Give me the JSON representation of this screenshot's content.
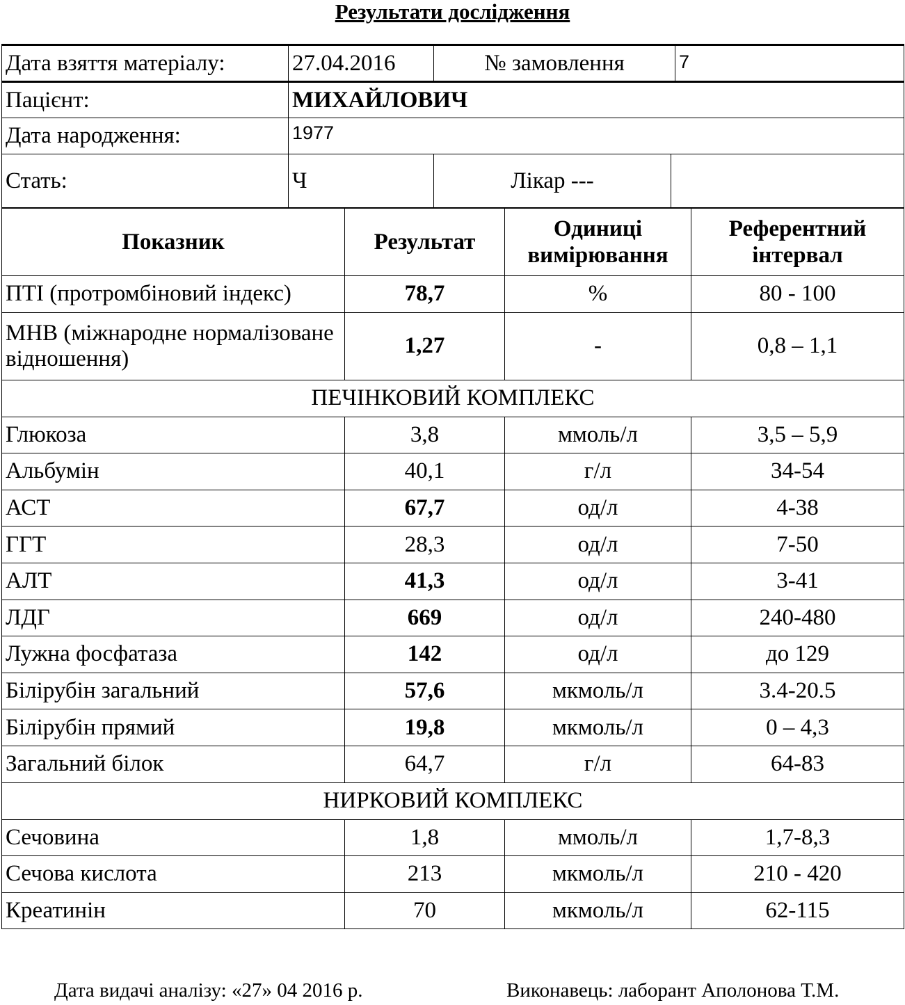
{
  "title": "Результати дослідження",
  "info": {
    "date_label": "Дата взяття матеріалу:",
    "date_value": "27.04.2016",
    "order_label": "№ замовлення",
    "order_value": "7",
    "patient_label": "Пацієнт:",
    "patient_value": "МИХАЙЛОВИЧ",
    "birth_label": "Дата народження:",
    "birth_value": "1977",
    "sex_label": "Стать:",
    "sex_value": "Ч",
    "doctor_label": "Лікар  ---",
    "doctor_value": ""
  },
  "table": {
    "headers": [
      "Показник",
      "Результат",
      "Одиниці вимірювання",
      "Референтний інтервал"
    ],
    "rows": [
      {
        "name": "ПТІ (протромбіновий індекс)",
        "result": "78,7",
        "unit": "%",
        "ref": "80 - 100",
        "bold": true
      },
      {
        "name": "МНВ (міжнародне нормалізоване відношення)",
        "result": "1,27",
        "unit": "-",
        "ref": "0,8 – 1,1",
        "bold": true,
        "tall": true
      },
      {
        "section": "ПЕЧІНКОВИЙ КОМПЛЕКС"
      },
      {
        "name": "Глюкоза",
        "result": "3,8",
        "unit": "ммоль/л",
        "ref": "3,5 – 5,9",
        "bold": false
      },
      {
        "name": "Альбумін",
        "result": "40,1",
        "unit": "г/л",
        "ref": "34-54",
        "bold": false
      },
      {
        "name": "АСТ",
        "result": "67,7",
        "unit": "од/л",
        "ref": "4-38",
        "bold": true
      },
      {
        "name": "ГГТ",
        "result": "28,3",
        "unit": "од/л",
        "ref": "7-50",
        "bold": false
      },
      {
        "name": "АЛТ",
        "result": "41,3",
        "unit": "од/л",
        "ref": "3-41",
        "bold": true
      },
      {
        "name": "ЛДГ",
        "result": "669",
        "unit": "од/л",
        "ref": "240-480",
        "bold": true
      },
      {
        "name": "Лужна фосфатаза",
        "result": "142",
        "unit": "од/л",
        "ref": "до 129",
        "bold": true
      },
      {
        "name": "Білірубін загальний",
        "result": "57,6",
        "unit": "мкмоль/л",
        "ref": "3.4-20.5",
        "bold": true
      },
      {
        "name": "Білірубін прямий",
        "result": "19,8",
        "unit": "мкмоль/л",
        "ref": "0 – 4,3",
        "bold": true
      },
      {
        "name": "Загальний білок",
        "result": "64,7",
        "unit": "г/л",
        "ref": "64-83",
        "bold": false
      },
      {
        "section": "НИРКОВИЙ КОМПЛЕКС"
      },
      {
        "name": "Сечовина",
        "result": "1,8",
        "unit": "ммоль/л",
        "ref": "1,7-8,3",
        "bold": false
      },
      {
        "name": "Сечова кислота",
        "result": "213",
        "unit": "мкмоль/л",
        "ref": "210 - 420",
        "bold": false
      },
      {
        "name": "Креатинін",
        "result": "70",
        "unit": "мкмоль/л",
        "ref": "62-115",
        "bold": false
      }
    ]
  },
  "footer": {
    "issue_date": "Дата видачі аналізу: «27» 04  2016 р.",
    "performer": "Виконавець: лаборант Аполонова Т.М."
  }
}
